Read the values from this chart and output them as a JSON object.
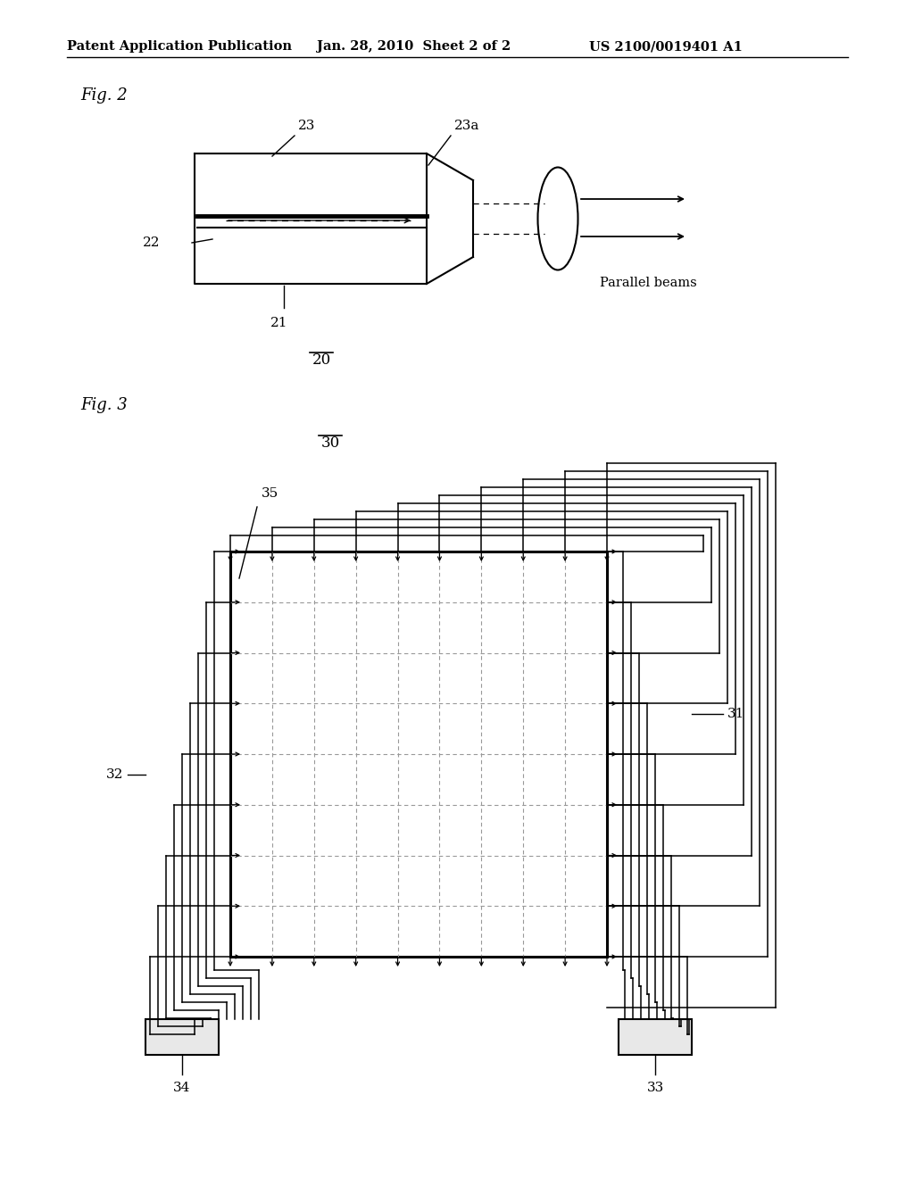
{
  "bg_color": "#ffffff",
  "line_color": "#000000",
  "header_left": "Patent Application Publication",
  "header_mid": "Jan. 28, 2010  Sheet 2 of 2",
  "header_right": "US 2100/0019401 A1",
  "fig2_label": "Fig. 2",
  "fig2_num": "20",
  "fig3_label": "Fig. 3",
  "fig3_num": "30",
  "label_21": "21",
  "label_22": "22",
  "label_23": "23",
  "label_23a": "23a",
  "label_parallel": "Parallel beams",
  "label_31": "31",
  "label_32": "32",
  "label_33": "33",
  "label_34": "34",
  "label_35": "35"
}
